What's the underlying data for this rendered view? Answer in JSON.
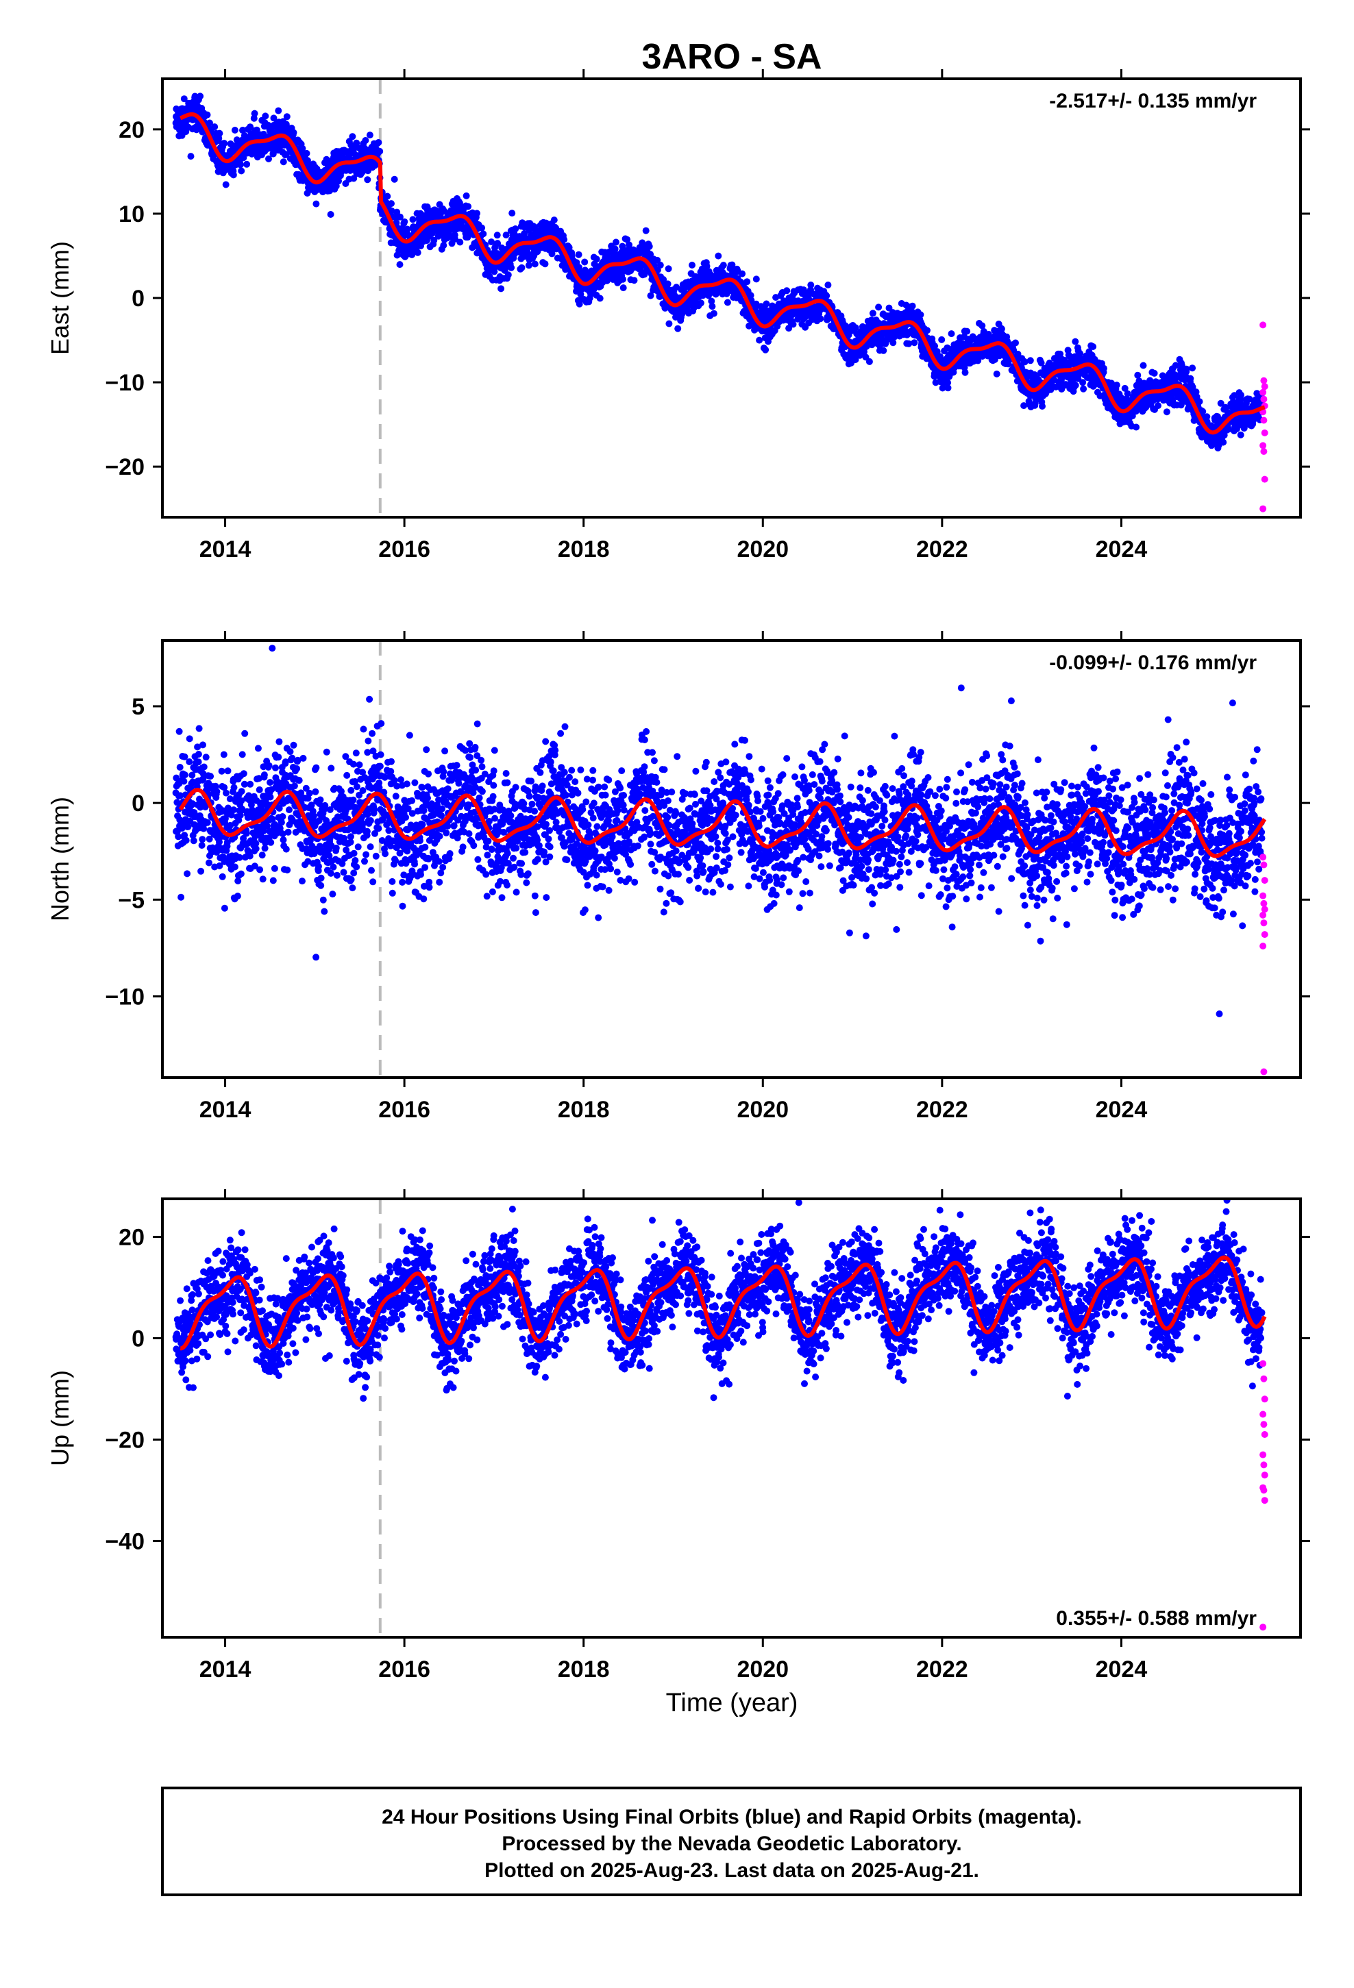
{
  "chart_data": {
    "title": "3ARO - SA",
    "type": "scatter",
    "xlabel": "Time (year)",
    "xlim": [
      2013.3,
      2026.0
    ],
    "xticks": [
      2014,
      2016,
      2018,
      2020,
      2022,
      2024
    ],
    "offset_line": 2015.73,
    "panels": [
      {
        "key": "east",
        "ylabel": "East (mm)",
        "ylim": [
          -26,
          26
        ],
        "yticks": [
          20,
          10,
          0,
          -10,
          -20
        ],
        "rate_label": "-2.517+/- 0.135 mm/yr",
        "rate_position": "top-right",
        "model_coefficients": {
          "steps": [
            {
              "time": 2015.73,
              "size": -4.5
            }
          ],
          "seasonal_amplitude": 2.0,
          "seasonal_phase_peak": 0.55,
          "trend_mm_per_yr": -2.517,
          "value_at_2013.5": 22.0
        },
        "scatter_noise": 1.1,
        "rapid_points": [
          -3.2,
          -9.8,
          -10.5,
          -11.2,
          -12.0,
          -12.8,
          -13.5,
          -14.5,
          -16.0,
          -17.5,
          -18.2,
          -21.5,
          -25.0
        ]
      },
      {
        "key": "north",
        "ylabel": "North (mm)",
        "ylim": [
          -14.2,
          8.4
        ],
        "yticks": [
          5,
          0,
          -5,
          -10
        ],
        "rate_label": "-0.099+/- 0.176 mm/yr",
        "rate_position": "top-right",
        "model_coefficients": {
          "steps": [],
          "seasonal_amplitude": 1.0,
          "seasonal_phase_peak": 0.65,
          "trend_mm_per_yr": -0.099,
          "value_at_2013.5": 0.0
        },
        "scatter_noise": 1.5,
        "rapid_points": [
          -2.8,
          -3.2,
          -4.0,
          -4.8,
          -5.2,
          -5.5,
          -5.8,
          -6.2,
          -6.8,
          -7.4,
          -13.9
        ]
      },
      {
        "key": "up",
        "ylabel": "Up (mm)",
        "ylim": [
          -59,
          27.5
        ],
        "yticks": [
          20,
          0,
          -20,
          -40
        ],
        "rate_label": "0.355+/- 0.588 mm/yr",
        "rate_position": "bottom-right",
        "model_coefficients": {
          "steps": [],
          "seasonal_amplitude": 6.0,
          "seasonal_phase_peak": 0.05,
          "trend_mm_per_yr": 0.355,
          "value_at_2013.5": 0.0
        },
        "scatter_noise": 4.0,
        "rapid_points": [
          -5,
          -8,
          -12,
          -15,
          -17,
          -19,
          -23,
          -25,
          -27,
          -29.5,
          -30,
          -32,
          -57
        ]
      }
    ]
  },
  "footer": {
    "line1": "24 Hour Positions Using Final Orbits (blue) and Rapid Orbits (magenta).",
    "line2": "Processed by the Nevada Geodetic Laboratory.",
    "line3": "Plotted on 2025-Aug-23. Last data on 2025-Aug-21."
  },
  "colors": {
    "final_orbits": "#0000ff",
    "rapid_orbits": "#ff00ff",
    "model": "#ff0000",
    "offset_line": "#bbbbbb",
    "frame": "#000000"
  }
}
